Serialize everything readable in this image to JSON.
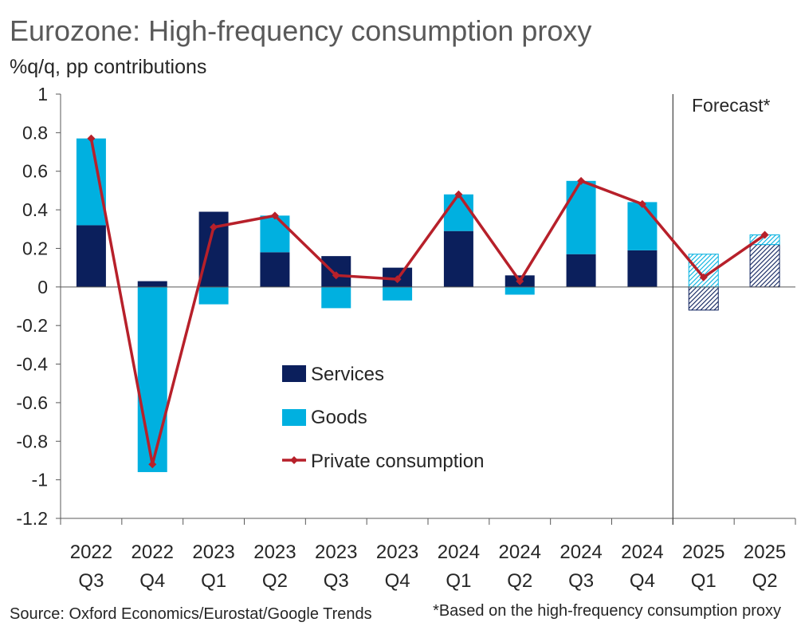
{
  "header": {
    "title": "Eurozone: High-frequency consumption proxy",
    "subtitle": "%q/q, pp contributions"
  },
  "footer": {
    "source": "Source: Oxford Economics/Eurostat/Google Trends",
    "note": "*Based on the high-frequency consumption proxy"
  },
  "colors": {
    "services": "#0b1f5c",
    "goods": "#00b0e0",
    "line": "#b7202a",
    "axis": "#595959"
  },
  "chart_data": {
    "type": "bar",
    "stacked": true,
    "title": "Eurozone: High-frequency consumption proxy",
    "ylabel": "%q/q, pp contributions",
    "ylim": [
      -1.2,
      1
    ],
    "yticks": [
      1,
      0.8,
      0.6,
      0.4,
      0.2,
      0,
      -0.2,
      -0.4,
      -0.6,
      -0.8,
      -1,
      -1.2
    ],
    "ytick_labels": [
      "1",
      "0.8",
      "0.6",
      "0.4",
      "0.2",
      "0",
      "-0.2",
      "-0.4",
      "-0.6",
      "-0.8",
      "-1",
      "-1.2"
    ],
    "categories": [
      [
        "2022",
        "Q3"
      ],
      [
        "2022",
        "Q4"
      ],
      [
        "2023",
        "Q1"
      ],
      [
        "2023",
        "Q2"
      ],
      [
        "2023",
        "Q3"
      ],
      [
        "2023",
        "Q4"
      ],
      [
        "2024",
        "Q1"
      ],
      [
        "2024",
        "Q2"
      ],
      [
        "2024",
        "Q3"
      ],
      [
        "2024",
        "Q4"
      ],
      [
        "2025",
        "Q1"
      ],
      [
        "2025",
        "Q2"
      ]
    ],
    "series": [
      {
        "name": "Services",
        "kind": "bar",
        "values": [
          0.32,
          0.03,
          0.39,
          0.18,
          0.16,
          0.1,
          0.29,
          0.06,
          0.17,
          0.19,
          -0.12,
          0.22
        ]
      },
      {
        "name": "Goods",
        "kind": "bar",
        "values": [
          0.45,
          -0.96,
          -0.09,
          0.19,
          -0.11,
          -0.07,
          0.19,
          -0.04,
          0.38,
          0.25,
          0.17,
          0.05
        ]
      },
      {
        "name": "Private consumption",
        "kind": "line",
        "values": [
          0.77,
          -0.92,
          0.31,
          0.37,
          0.06,
          0.04,
          0.48,
          0.03,
          0.55,
          0.43,
          0.05,
          0.27
        ]
      }
    ],
    "forecast_start_index": 10,
    "forecast_label": "Forecast*",
    "legend": {
      "placement": "center-left"
    },
    "grid": false
  }
}
